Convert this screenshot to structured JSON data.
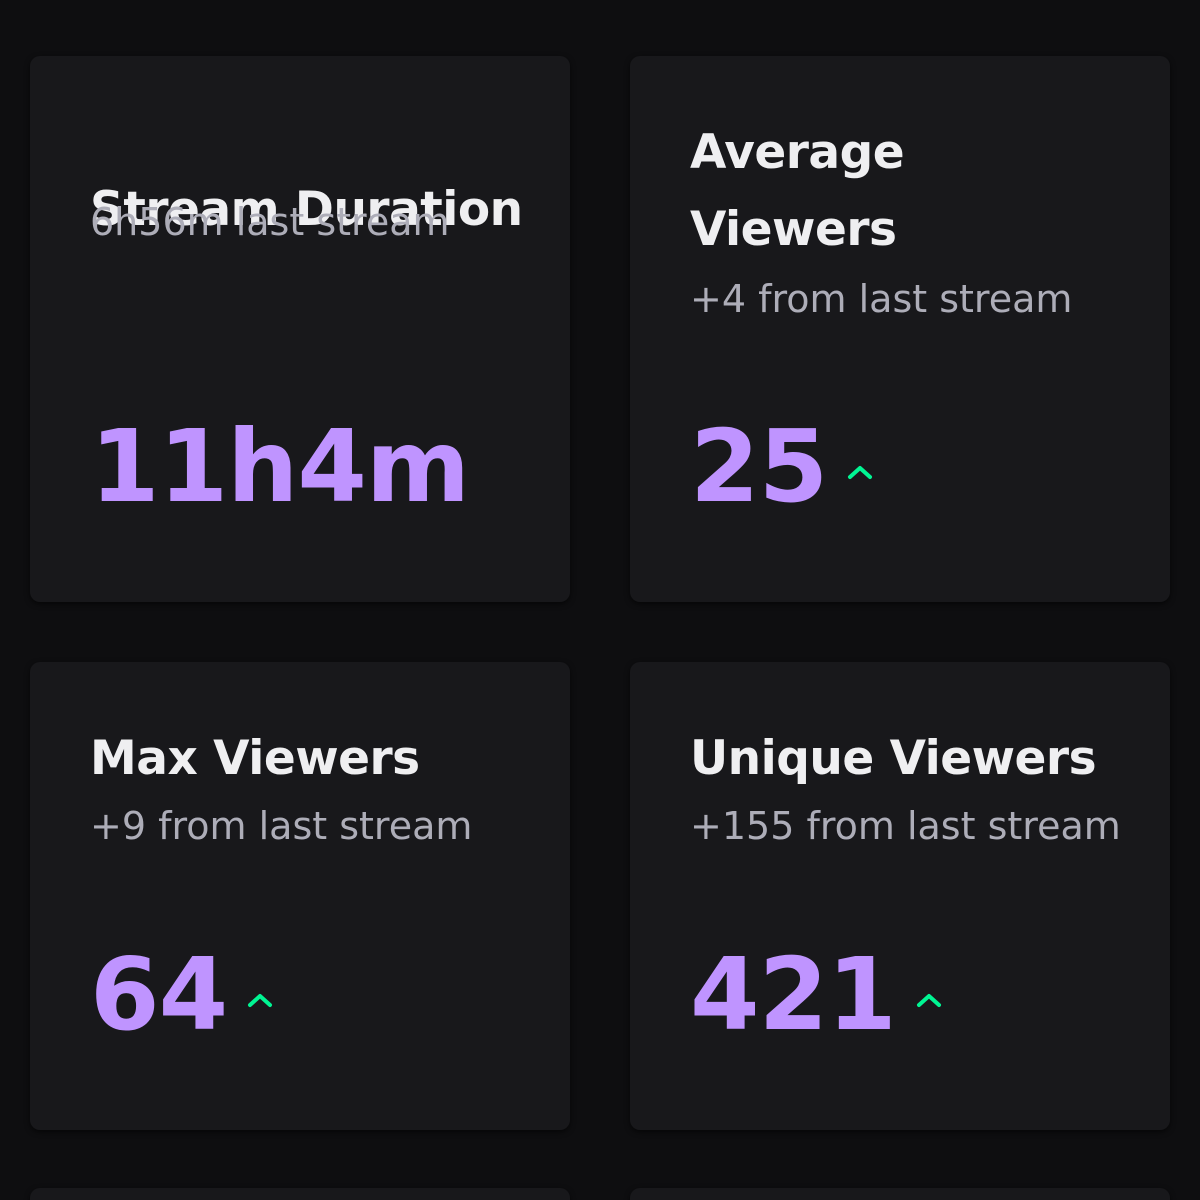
{
  "colors": {
    "background": "#0e0e10",
    "card": "#18181b",
    "title": "#efeff1",
    "subtitle": "#adadb8",
    "value": "#bf94ff",
    "trend_up": "#00f593"
  },
  "cards": [
    {
      "title": "Stream Duration",
      "subtitle": "6h56m last stream",
      "value": "11h4m",
      "trend": "none"
    },
    {
      "title": "Average Viewers",
      "subtitle": "+4 from last stream",
      "value": "25",
      "trend": "up-arrow-icon"
    },
    {
      "title": "Max Viewers",
      "subtitle": "+9 from last stream",
      "value": "64",
      "trend": "up-arrow-icon"
    },
    {
      "title": "Unique Viewers",
      "subtitle": "+155 from last stream",
      "value": "421",
      "trend": "up-arrow-icon"
    }
  ]
}
